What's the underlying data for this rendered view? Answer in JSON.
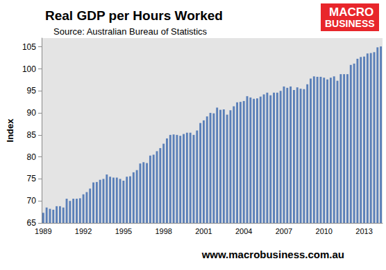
{
  "chart_data": {
    "type": "bar",
    "title": "Real GDP per Hours Worked",
    "subtitle": "Source: Australian Bureau of Statistics",
    "y_label": "Index",
    "annotations": [
      "MACRO",
      "BUSINESS",
      "www.macrobusiness.com.au"
    ],
    "categories": [
      "1989",
      null,
      null,
      null,
      null,
      null,
      null,
      null,
      null,
      null,
      null,
      null,
      "1992",
      null,
      null,
      null,
      null,
      null,
      null,
      null,
      null,
      null,
      null,
      null,
      "1995",
      null,
      null,
      null,
      null,
      null,
      null,
      null,
      null,
      null,
      null,
      null,
      "1998",
      null,
      null,
      null,
      null,
      null,
      null,
      null,
      null,
      null,
      null,
      null,
      "2001",
      null,
      null,
      null,
      null,
      null,
      null,
      null,
      null,
      null,
      null,
      null,
      "2004",
      null,
      null,
      null,
      null,
      null,
      null,
      null,
      null,
      null,
      null,
      null,
      "2007",
      null,
      null,
      null,
      null,
      null,
      null,
      null,
      null,
      null,
      null,
      null,
      "2010",
      null,
      null,
      null,
      null,
      null,
      null,
      null,
      null,
      null,
      null,
      null,
      "2013",
      null,
      null,
      null,
      null,
      null
    ],
    "values": [
      67.3,
      68.5,
      68.2,
      68.0,
      68.8,
      68.8,
      68.5,
      70.5,
      70.0,
      70.5,
      70.5,
      70.6,
      71.5,
      72.0,
      72.8,
      74.2,
      74.3,
      74.8,
      75.0,
      76.0,
      75.5,
      75.3,
      75.3,
      75.0,
      74.6,
      75.5,
      75.6,
      76.5,
      77.0,
      78.5,
      78.8,
      78.6,
      80.3,
      80.5,
      81.3,
      82.0,
      83.0,
      84.2,
      85.0,
      85.1,
      85.0,
      84.8,
      85.2,
      85.5,
      85.5,
      85.0,
      86.0,
      87.7,
      88.3,
      89.2,
      90.0,
      89.9,
      91.2,
      90.7,
      90.8,
      89.6,
      90.6,
      91.5,
      92.4,
      92.5,
      92.7,
      93.8,
      93.5,
      93.2,
      93.3,
      93.7,
      94.2,
      94.6,
      94.0,
      94.6,
      94.6,
      95.0,
      96.0,
      95.7,
      96.0,
      95.2,
      95.8,
      95.5,
      95.4,
      96.5,
      97.8,
      98.3,
      98.2,
      98.2,
      98.0,
      97.6,
      98.0,
      98.3,
      97.3,
      98.8,
      98.8,
      98.8,
      100.9,
      101.2,
      102.3,
      102.7,
      102.8,
      103.5,
      103.6,
      103.8,
      104.9,
      105.1
    ],
    "color": "#5a7fb8",
    "ylim": [
      65,
      107
    ],
    "yticks": [
      65,
      70,
      75,
      80,
      85,
      90,
      95,
      100,
      105
    ],
    "grid": false
  }
}
